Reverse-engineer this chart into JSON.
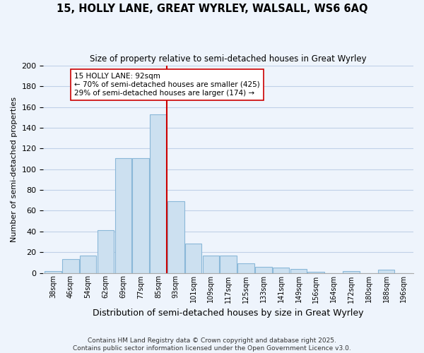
{
  "title_line1": "15, HOLLY LANE, GREAT WYRLEY, WALSALL, WS6 6AQ",
  "title_line2": "Size of property relative to semi-detached houses in Great Wyrley",
  "xlabel": "Distribution of semi-detached houses by size in Great Wyrley",
  "ylabel": "Number of semi-detached properties",
  "bin_labels": [
    "38sqm",
    "46sqm",
    "54sqm",
    "62sqm",
    "69sqm",
    "77sqm",
    "85sqm",
    "93sqm",
    "101sqm",
    "109sqm",
    "117sqm",
    "125sqm",
    "133sqm",
    "141sqm",
    "149sqm",
    "156sqm",
    "164sqm",
    "172sqm",
    "180sqm",
    "188sqm",
    "196sqm"
  ],
  "bin_counts": [
    2,
    13,
    17,
    41,
    111,
    111,
    153,
    69,
    28,
    17,
    17,
    9,
    6,
    5,
    4,
    1,
    0,
    2,
    0,
    3,
    0
  ],
  "bar_color": "#cce0f0",
  "bar_edge_color": "#8ab8d8",
  "grid_color": "#c0d0e8",
  "vline_x_index": 7,
  "vline_color": "#cc0000",
  "annotation_text": "15 HOLLY LANE: 92sqm\n← 70% of semi-detached houses are smaller (425)\n29% of semi-detached houses are larger (174) →",
  "annotation_box_color": "#ffffff",
  "annotation_box_edge": "#cc0000",
  "footer": "Contains HM Land Registry data © Crown copyright and database right 2025.\nContains public sector information licensed under the Open Government Licence v3.0.",
  "ylim": [
    0,
    200
  ],
  "yticks": [
    0,
    20,
    40,
    60,
    80,
    100,
    120,
    140,
    160,
    180,
    200
  ],
  "background_color": "#eef4fc"
}
